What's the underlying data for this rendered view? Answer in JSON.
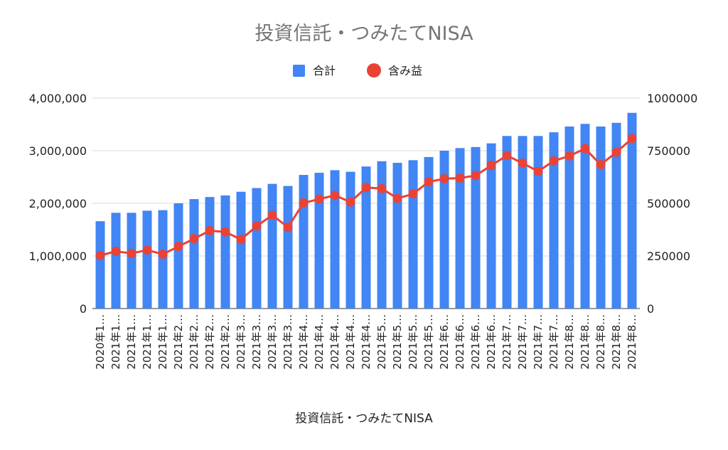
{
  "chart_data": {
    "type": "bar",
    "title": "投資信託・つみたてNISA",
    "xlabel": "投資信託・つみたてNISA",
    "ylabel": "",
    "ylabel_right": "",
    "legend_position": "top",
    "grid": true,
    "ylim": [
      0,
      4000000
    ],
    "ylim_right": [
      0,
      1000000
    ],
    "yticks": [
      "0",
      "1,000,000",
      "2,000,000",
      "3,000,000",
      "4,000,000"
    ],
    "yticks_right": [
      "0",
      "250000",
      "500000",
      "750000",
      "1000000"
    ],
    "categories": [
      "2020年1…",
      "2021年1…",
      "2021年1…",
      "2021年1…",
      "2021年1…",
      "2021年2…",
      "2021年2…",
      "2021年2…",
      "2021年2…",
      "2021年3…",
      "2021年3…",
      "2021年3…",
      "2021年3…",
      "2021年4…",
      "2021年4…",
      "2021年4…",
      "2021年4…",
      "2021年4…",
      "2021年5…",
      "2021年5…",
      "2021年5…",
      "2021年5…",
      "2021年6…",
      "2021年6…",
      "2021年6…",
      "2021年6…",
      "2021年7…",
      "2021年7…",
      "2021年7…",
      "2021年7…",
      "2021年8…",
      "2021年8…",
      "2021年8…",
      "2021年8…",
      "2021年8…"
    ],
    "series": [
      {
        "name": "合計",
        "type": "bar",
        "axis": "left",
        "color": "#4285F4",
        "values": [
          1660000,
          1820000,
          1820000,
          1860000,
          1870000,
          2000000,
          2080000,
          2120000,
          2150000,
          2220000,
          2290000,
          2370000,
          2330000,
          2540000,
          2580000,
          2630000,
          2600000,
          2700000,
          2800000,
          2770000,
          2820000,
          2880000,
          3000000,
          3050000,
          3070000,
          3140000,
          3280000,
          3280000,
          3280000,
          3350000,
          3460000,
          3510000,
          3460000,
          3530000,
          3720000
        ]
      },
      {
        "name": "含み益",
        "type": "line",
        "axis": "right",
        "color": "#EA4335",
        "values": [
          252000,
          272000,
          262000,
          278000,
          258000,
          295000,
          332000,
          370000,
          364000,
          328000,
          392000,
          444000,
          386000,
          502000,
          520000,
          538000,
          506000,
          575000,
          570000,
          523000,
          545000,
          602000,
          617000,
          620000,
          632000,
          680000,
          727000,
          691000,
          652000,
          702000,
          725000,
          760000,
          684000,
          743000,
          808000
        ]
      }
    ]
  }
}
